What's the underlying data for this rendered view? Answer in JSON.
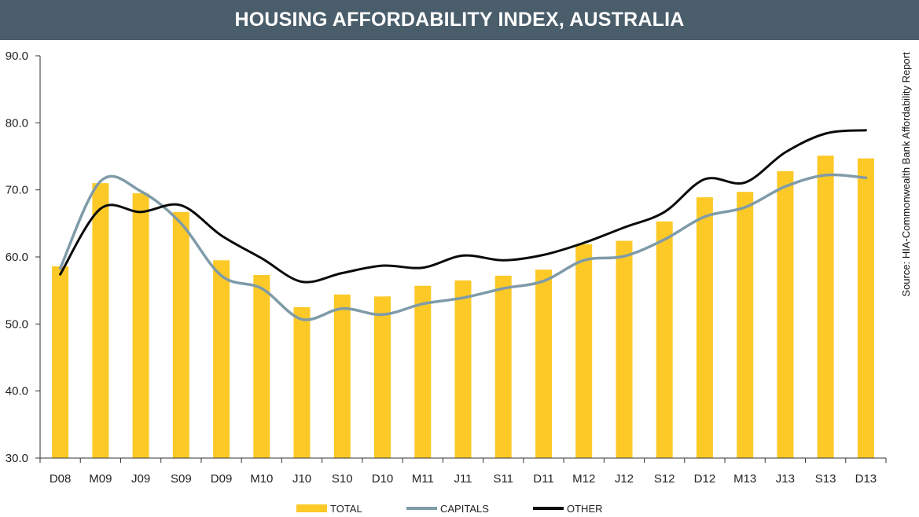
{
  "colors": {
    "title_bar": "#4a5d6b",
    "total": "#fcc927",
    "capitals": "#7f9ba8",
    "other": "#0a0a0a",
    "axis": "#333333"
  },
  "chart_data": {
    "type": "bar",
    "title": "HOUSING AFFORDABILITY INDEX, AUSTRALIA",
    "source": "Source: HIA-Commonwealth Bank Affordability Report",
    "categories": [
      "D08",
      "M09",
      "J09",
      "S09",
      "D09",
      "M10",
      "J10",
      "S10",
      "D10",
      "M11",
      "J11",
      "S11",
      "D11",
      "M12",
      "J12",
      "S12",
      "D12",
      "M13",
      "J13",
      "S13",
      "D13"
    ],
    "ylim": [
      30,
      90
    ],
    "yticks": [
      "30.0",
      "40.0",
      "50.0",
      "60.0",
      "70.0",
      "80.0",
      "90.0"
    ],
    "grid": false,
    "legend_position": "bottom",
    "series": [
      {
        "name": "TOTAL",
        "type": "bar",
        "color": "#fcc927",
        "values": [
          58.6,
          71.0,
          69.5,
          66.7,
          59.5,
          57.3,
          52.5,
          54.4,
          54.1,
          55.7,
          56.5,
          57.2,
          58.1,
          61.9,
          62.4,
          65.3,
          68.9,
          69.7,
          72.8,
          75.1,
          74.7
        ]
      },
      {
        "name": "CAPITALS",
        "type": "line",
        "color": "#7f9ba8",
        "values": [
          58.3,
          71.3,
          69.8,
          65.0,
          57.2,
          55.3,
          50.7,
          52.3,
          51.4,
          53.0,
          53.9,
          55.3,
          56.4,
          59.5,
          60.1,
          62.6,
          66.0,
          67.4,
          70.5,
          72.2,
          71.8
        ]
      },
      {
        "name": "OTHER",
        "type": "line",
        "color": "#0a0a0a",
        "values": [
          57.4,
          67.2,
          66.7,
          67.7,
          63.2,
          59.8,
          56.3,
          57.6,
          58.7,
          58.4,
          60.2,
          59.5,
          60.3,
          62.1,
          64.4,
          66.7,
          71.6,
          71.1,
          75.6,
          78.4,
          78.9
        ]
      }
    ]
  }
}
